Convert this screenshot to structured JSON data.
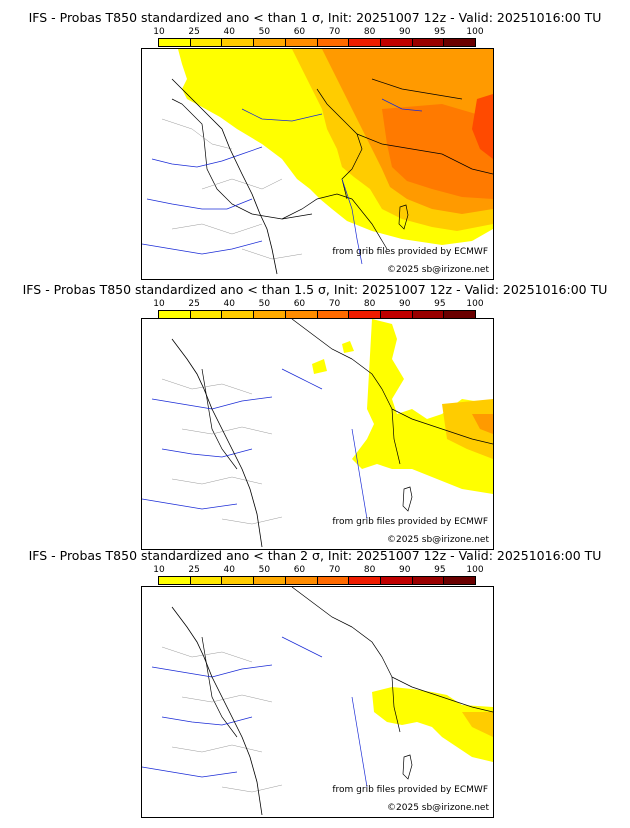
{
  "legend": {
    "ticks": [
      "10",
      "25",
      "40",
      "50",
      "60",
      "70",
      "80",
      "90",
      "95",
      "100"
    ],
    "colors": [
      "#ffff00",
      "#ffe800",
      "#ffcc00",
      "#ffaa00",
      "#ff8c00",
      "#ff6a00",
      "#ee1c00",
      "#c00000",
      "#990000",
      "#6a0000"
    ]
  },
  "panels": [
    {
      "title": "IFS - Probas T850  standardized ano < than 1 σ, Init: 20251007 12z - Valid: 20251016:00 TU",
      "source": "from grib files provided by ECMWF",
      "copyright": "©2025 sb@irizone.net"
    },
    {
      "title": "IFS - Probas T850  standardized ano < than 1.5 σ, Init: 20251007 12z - Valid: 20251016:00 TU",
      "source": "from grib files provided by ECMWF",
      "copyright": "©2025 sb@irizone.net"
    },
    {
      "title": "IFS - Probas T850  standardized ano < than 2 σ, Init: 20251007 12z - Valid: 20251016:00 TU",
      "source": "from grib files provided by ECMWF",
      "copyright": "©2025 sb@irizone.net"
    }
  ]
}
